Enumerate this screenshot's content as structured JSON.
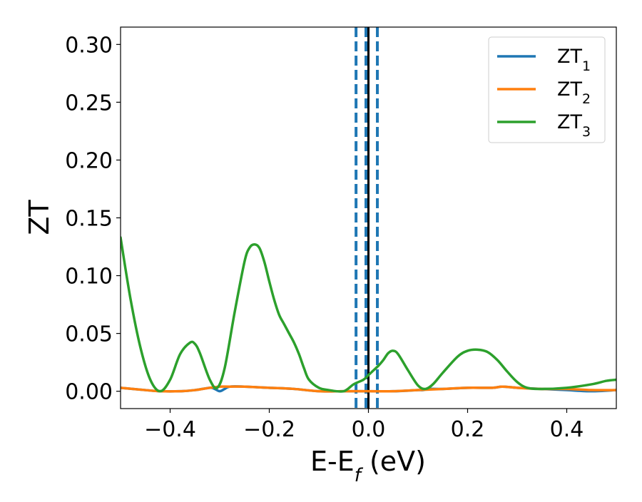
{
  "chart_data": {
    "type": "line",
    "xlabel": "E-E",
    "xlabel_sub": "f",
    "xlabel_unit": " (eV)",
    "ylabel": "ZT",
    "xlim": [
      -0.5,
      0.5
    ],
    "ylim": [
      -0.015,
      0.315
    ],
    "x_ticks": [
      -0.4,
      -0.2,
      0.0,
      0.2,
      0.4
    ],
    "x_tick_labels": [
      "−0.4",
      "−0.2",
      "0.0",
      "0.2",
      "0.4"
    ],
    "y_ticks": [
      0.0,
      0.05,
      0.1,
      0.15,
      0.2,
      0.25,
      0.3
    ],
    "y_tick_labels": [
      "0.00",
      "0.05",
      "0.10",
      "0.15",
      "0.20",
      "0.25",
      "0.30"
    ],
    "grid": false,
    "legend_position": "top-right",
    "vertical_lines": [
      {
        "x": -0.025,
        "style": "dashed",
        "color": "#1f77b4"
      },
      {
        "x": -0.005,
        "style": "dashed",
        "color": "#1f77b4"
      },
      {
        "x": 0.0,
        "style": "solid",
        "color": "#000000"
      },
      {
        "x": 0.018,
        "style": "dashed",
        "color": "#1f77b4"
      }
    ],
    "series": [
      {
        "name": "ZT",
        "sub": "1",
        "color": "#1f77b4",
        "x": [
          -0.5,
          -0.45,
          -0.42,
          -0.38,
          -0.35,
          -0.32,
          -0.31,
          -0.3,
          -0.29,
          -0.28,
          -0.25,
          -0.2,
          -0.15,
          -0.1,
          -0.05,
          0.0,
          0.05,
          0.1,
          0.11,
          0.12,
          0.15,
          0.2,
          0.25,
          0.27,
          0.3,
          0.35,
          0.4,
          0.45,
          0.5
        ],
        "values": [
          0.003,
          0.001,
          0.0,
          0.0,
          0.001,
          0.003,
          0.002,
          0.0,
          0.002,
          0.004,
          0.004,
          0.003,
          0.002,
          0.0,
          0.0,
          0.0,
          0.0,
          0.001,
          0.001,
          0.002,
          0.002,
          0.003,
          0.003,
          0.004,
          0.003,
          0.002,
          0.001,
          0.0,
          0.001
        ]
      },
      {
        "name": "ZT",
        "sub": "2",
        "color": "#ff7f0e",
        "x": [
          -0.5,
          -0.45,
          -0.42,
          -0.38,
          -0.35,
          -0.32,
          -0.3,
          -0.28,
          -0.25,
          -0.2,
          -0.15,
          -0.1,
          -0.05,
          0.0,
          0.05,
          0.1,
          0.15,
          0.2,
          0.25,
          0.27,
          0.3,
          0.35,
          0.4,
          0.45,
          0.5
        ],
        "values": [
          0.003,
          0.001,
          0.0,
          0.0,
          0.001,
          0.003,
          0.004,
          0.004,
          0.004,
          0.003,
          0.002,
          0.0,
          0.0,
          0.0,
          0.0,
          0.001,
          0.002,
          0.003,
          0.003,
          0.004,
          0.003,
          0.002,
          0.002,
          0.001,
          0.001
        ]
      },
      {
        "name": "ZT",
        "sub": "3",
        "color": "#2ca02c",
        "x": [
          -0.5,
          -0.48,
          -0.46,
          -0.44,
          -0.42,
          -0.4,
          -0.38,
          -0.36,
          -0.35,
          -0.34,
          -0.32,
          -0.305,
          -0.29,
          -0.27,
          -0.25,
          -0.24,
          -0.23,
          -0.22,
          -0.21,
          -0.2,
          -0.19,
          -0.18,
          -0.17,
          -0.16,
          -0.15,
          -0.14,
          -0.13,
          -0.12,
          -0.1,
          -0.08,
          -0.05,
          -0.03,
          -0.01,
          0.0,
          0.01,
          0.02,
          0.03,
          0.04,
          0.05,
          0.06,
          0.08,
          0.1,
          0.115,
          0.13,
          0.15,
          0.18,
          0.2,
          0.22,
          0.24,
          0.26,
          0.28,
          0.3,
          0.32,
          0.35,
          0.4,
          0.45,
          0.48,
          0.5
        ],
        "values": [
          0.133,
          0.08,
          0.038,
          0.01,
          0.0,
          0.01,
          0.032,
          0.042,
          0.041,
          0.033,
          0.01,
          0.003,
          0.02,
          0.068,
          0.112,
          0.124,
          0.127,
          0.124,
          0.112,
          0.095,
          0.079,
          0.066,
          0.058,
          0.05,
          0.042,
          0.032,
          0.02,
          0.01,
          0.003,
          0.001,
          0.0,
          0.006,
          0.01,
          0.014,
          0.018,
          0.022,
          0.027,
          0.033,
          0.035,
          0.032,
          0.018,
          0.005,
          0.002,
          0.006,
          0.016,
          0.03,
          0.035,
          0.036,
          0.034,
          0.027,
          0.017,
          0.008,
          0.003,
          0.002,
          0.003,
          0.006,
          0.009,
          0.01
        ]
      }
    ]
  }
}
